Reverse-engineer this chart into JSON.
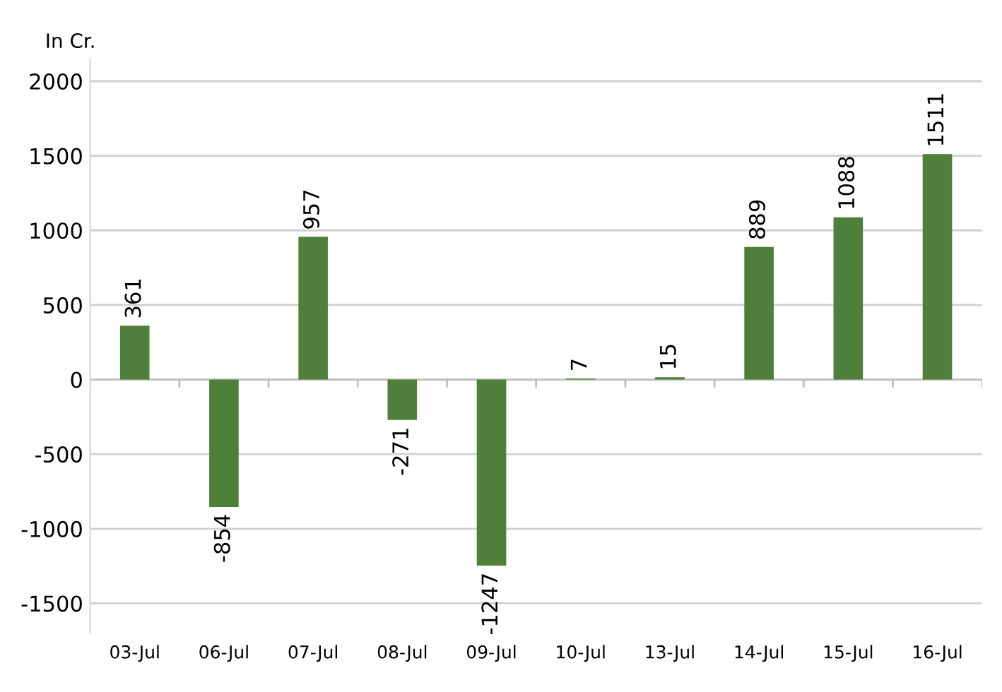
{
  "chart_data": {
    "type": "bar",
    "ylabel": "In Cr.",
    "categories": [
      "03-Jul",
      "06-Jul",
      "07-Jul",
      "08-Jul",
      "09-Jul",
      "10-Jul",
      "13-Jul",
      "14-Jul",
      "15-Jul",
      "16-Jul"
    ],
    "values": [
      361,
      -854,
      957,
      -271,
      -1247,
      7,
      15,
      889,
      1088,
      1511
    ],
    "color": "#4f7f3b",
    "ylim": [
      -1700,
      2150
    ],
    "yticks": [
      -1500,
      -1000,
      -500,
      0,
      500,
      1000,
      1500,
      2000
    ],
    "grid": "y",
    "data_labels": true
  }
}
